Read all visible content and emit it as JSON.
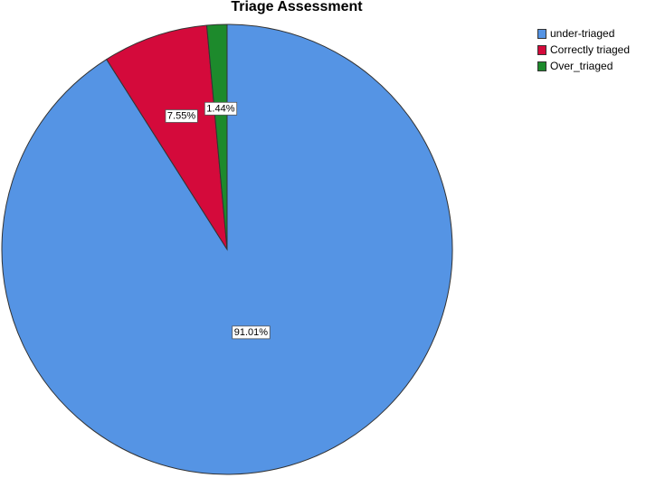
{
  "chart_data": {
    "type": "pie",
    "title": "Triage Assessment",
    "slices": [
      {
        "label": "under-triaged",
        "value": 91.01,
        "value_label": "91.01%",
        "color": "#5594e4"
      },
      {
        "label": "Correctly triaged",
        "value": 7.55,
        "value_label": "7.55%",
        "color": "#d40a3b"
      },
      {
        "label": "Over_triaged",
        "value": 1.44,
        "value_label": "1.44%",
        "color": "#1d8a2c"
      }
    ],
    "direction": "clockwise from 12 o'clock",
    "legend_position": "top-right"
  }
}
